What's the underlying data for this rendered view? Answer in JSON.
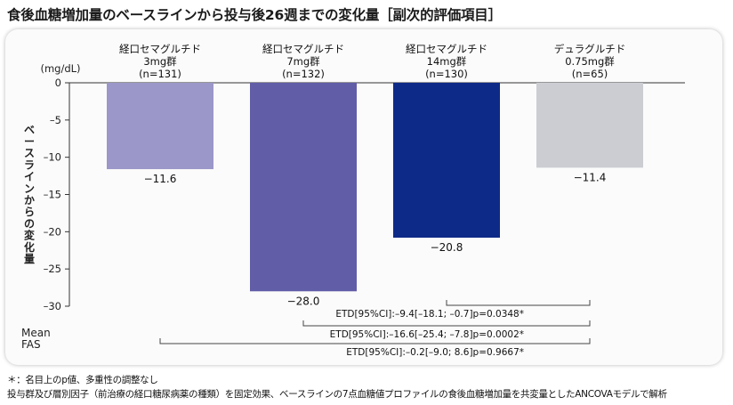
{
  "title": "食後血糖増加量のベースラインから投与後26週までの変化量［副次的評価項目］",
  "chart_data": {
    "type": "bar",
    "unit_label": "(mg/dL)",
    "ylabel": "ベースラインからの変化量",
    "ylim": [
      -30,
      0
    ],
    "yticks": [
      0,
      -5,
      -10,
      -15,
      -20,
      -25,
      -30
    ],
    "ytick_labels": [
      "0",
      "–5",
      "–10",
      "–15",
      "–20",
      "–25",
      "–30"
    ],
    "categories": [
      {
        "line1": "経口セマグルチド",
        "line2": "3mg群",
        "line3": "(n=131)"
      },
      {
        "line1": "経口セマグルチド",
        "line2": "7mg群",
        "line3": "(n=132)"
      },
      {
        "line1": "経口セマグルチド",
        "line2": "14mg群",
        "line3": "(n=130)"
      },
      {
        "line1": "デュラグルチド",
        "line2": "0.75mg群",
        "line3": "(n=65)"
      }
    ],
    "values": [
      -11.6,
      -28.0,
      -20.8,
      -11.4
    ],
    "value_labels": [
      "−11.6",
      "−28.0",
      "−20.8",
      "−11.4"
    ],
    "colors": [
      "#9b97c8",
      "#615da6",
      "#0e2a88",
      "#cbcdd2"
    ],
    "comparisons": [
      {
        "from": 2,
        "to": 3,
        "label": "ETD[95%CI]:–9.4[–18.1; –0.7]p=0.0348*"
      },
      {
        "from": 1,
        "to": 3,
        "label": "ETD[95%CI]:–16.6[–25.4; –7.8]p=0.0002*"
      },
      {
        "from": 0,
        "to": 3,
        "label": "ETD[95%CI]:–0.2[–9.0; 8.6]p=0.9667*"
      }
    ],
    "stat_labels": [
      "Mean",
      "FAS"
    ]
  },
  "notes": [
    "＊：名目上のp値、多重性の調整なし",
    "投与群及び層別因子（前治療の経口糖尿病薬の種類）を固定効果、ベースラインの7点血糖値プロファイルの食後血糖増加量を共変量としたANCOVAモデルで解析"
  ]
}
